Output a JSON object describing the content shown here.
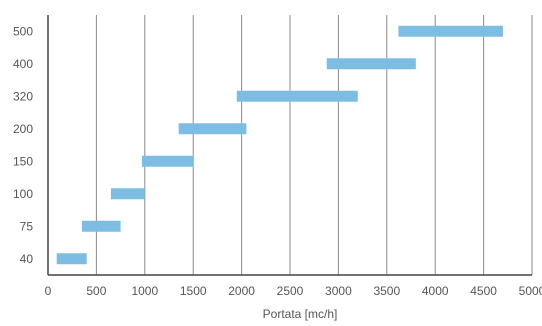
{
  "chart_data": {
    "type": "bar",
    "orientation": "horizontal-range",
    "xlabel": "Portata [mc/h]",
    "ylabel": "",
    "xlim": [
      0,
      5000
    ],
    "x_ticks": [
      0,
      500,
      1000,
      1500,
      2000,
      2500,
      3000,
      3500,
      4000,
      4500,
      5000
    ],
    "x_tick_labels": [
      "0",
      "500",
      "1000",
      "1500",
      "2000",
      "2500",
      "3000",
      "3500",
      "4000",
      "4500",
      "5000"
    ],
    "categories": [
      "40",
      "75",
      "100",
      "150",
      "200",
      "320",
      "400",
      "500"
    ],
    "ranges": [
      [
        90,
        400
      ],
      [
        350,
        750
      ],
      [
        650,
        1000
      ],
      [
        970,
        1500
      ],
      [
        1350,
        2050
      ],
      [
        1950,
        3200
      ],
      [
        2880,
        3800
      ],
      [
        3620,
        4700
      ]
    ],
    "grid": "vertical",
    "bar_color": "#7dbde3",
    "grid_color": "#8a8a8a",
    "axis_color": "#444444"
  }
}
